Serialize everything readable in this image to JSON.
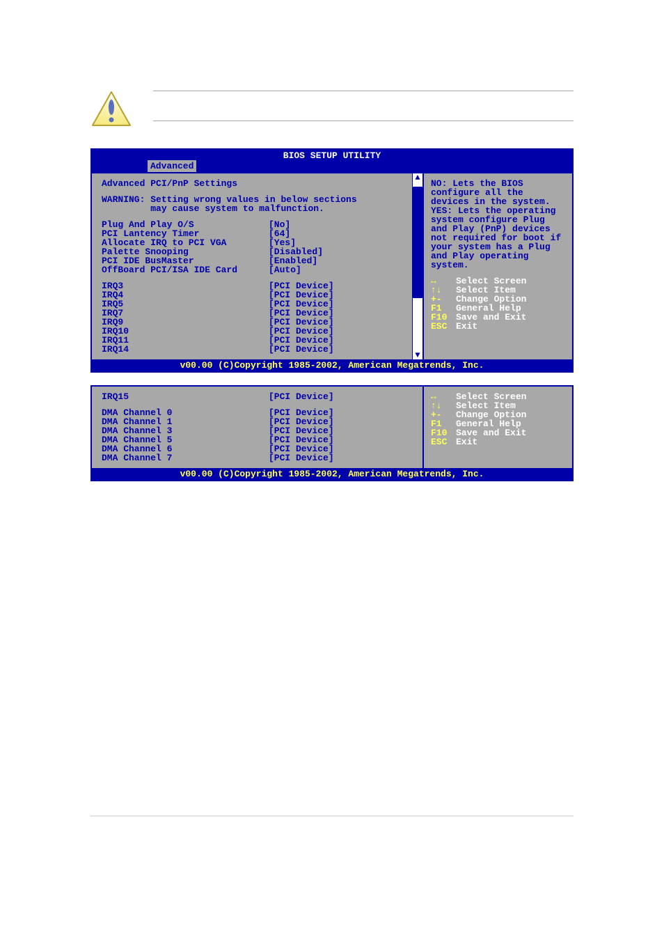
{
  "bios": {
    "title": "BIOS SETUP UTILITY",
    "tab": "Advanced",
    "copyright": "v00.00 (C)Copyright 1985-2002, American Megatrends, Inc.",
    "panel1": {
      "heading": "Advanced PCI/PnP Settings",
      "warning1": "WARNING: Setting wrong values in below sections",
      "warning2": "         may cause system to malfunction.",
      "settings": [
        {
          "label": "Plug And Play O/S",
          "value": "[No]"
        },
        {
          "label": "PCI Lantency Timer",
          "value": "[64]"
        },
        {
          "label": "Allocate IRQ to PCI VGA",
          "value": "[Yes]"
        },
        {
          "label": "Palette Snooping",
          "value": "[Disabled]"
        },
        {
          "label": "PCI IDE BusMaster",
          "value": "[Enabled]"
        },
        {
          "label": "OffBoard PCI/ISA IDE Card",
          "value": "[Auto]"
        }
      ],
      "irqs": [
        {
          "label": "IRQ3",
          "value": "[PCI Device]"
        },
        {
          "label": "IRQ4",
          "value": "[PCI Device]"
        },
        {
          "label": "IRQ5",
          "value": "[PCI Device]"
        },
        {
          "label": "IRQ7",
          "value": "[PCI Device]"
        },
        {
          "label": "IRQ9",
          "value": "[PCI Device]"
        },
        {
          "label": "IRQ10",
          "value": "[PCI Device]"
        },
        {
          "label": "IRQ11",
          "value": "[PCI Device]"
        },
        {
          "label": "IRQ14",
          "value": "[PCI Device]"
        }
      ],
      "help": "NO: Lets the BIOS configure all the devices in the system. YES: Lets the operating system configure Plug and Play (PnP) devices not required for boot if your system has a Plug and Play operating system.",
      "keys": [
        {
          "k": "↔",
          "t": "Select Screen"
        },
        {
          "k": "↑↓",
          "t": "Select Item"
        },
        {
          "k": "+-",
          "t": "Change Option"
        },
        {
          "k": "F1",
          "t": "General Help"
        },
        {
          "k": "F10",
          "t": "Save and Exit"
        },
        {
          "k": "ESC",
          "t": "Exit"
        }
      ]
    },
    "panel2": {
      "settings": [
        {
          "label": "IRQ15",
          "value": "[PCI Device]"
        }
      ],
      "dmas": [
        {
          "label": "DMA Channel 0",
          "value": "[PCI Device]"
        },
        {
          "label": "DMA Channel 1",
          "value": "[PCI Device]"
        },
        {
          "label": "DMA Channel 3",
          "value": "[PCI Device]"
        },
        {
          "label": "DMA Channel 5",
          "value": "[PCI Device]"
        },
        {
          "label": "DMA Channel 6",
          "value": "[PCI Device]"
        },
        {
          "label": "DMA Channel 7",
          "value": "[PCI Device]"
        }
      ],
      "keys": [
        {
          "k": "↔",
          "t": "Select Screen"
        },
        {
          "k": "↑↓",
          "t": "Select Item"
        },
        {
          "k": "+-",
          "t": "Change Option"
        },
        {
          "k": "F1",
          "t": "General Help"
        },
        {
          "k": "F10",
          "t": "Save and Exit"
        },
        {
          "k": "ESC",
          "t": "Exit"
        }
      ]
    }
  }
}
